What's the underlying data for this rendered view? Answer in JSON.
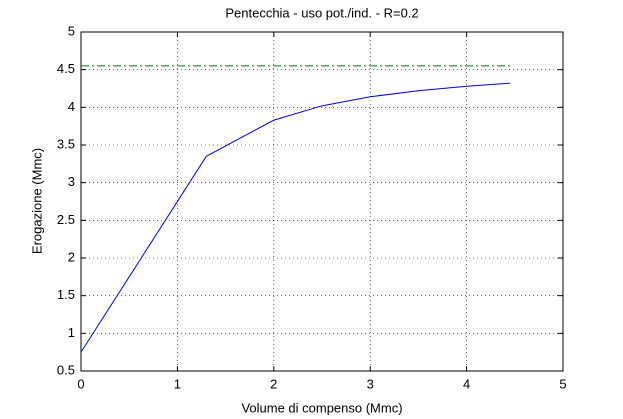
{
  "chart_data": {
    "type": "line",
    "title": "Pentecchia  -  uso pot./ind.  -   R=0.2",
    "x_label": "Volume di compenso (Mmc)",
    "y_label": "Erogazione (Mmc)",
    "series": [
      {
        "color": "#0000ff",
        "dash": "solid",
        "x": [
          0,
          1.3,
          2,
          2.5,
          3,
          3.5,
          4,
          4.45
        ],
        "values": [
          0.75,
          3.35,
          3.83,
          4.02,
          4.14,
          4.22,
          4.28,
          4.32
        ]
      },
      {
        "color": "#008000",
        "dash": "dashdot",
        "x": [
          0,
          4.45
        ],
        "values": [
          4.55,
          4.55
        ]
      }
    ],
    "xlim": [
      0,
      5
    ],
    "xticks": [
      0,
      1,
      2,
      3,
      4,
      5
    ],
    "ylim": [
      0.5,
      5
    ],
    "yticks": [
      0.5,
      1,
      1.5,
      2,
      2.5,
      3,
      3.5,
      4,
      4.5,
      5
    ],
    "grid": true
  }
}
